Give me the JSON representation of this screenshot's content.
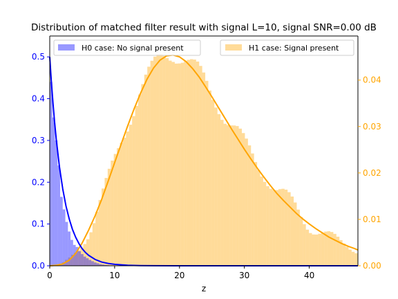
{
  "chart_data": {
    "type": "bar",
    "title": "Distribution of matched filter result with signal L=10, signal SNR=0.00 dB",
    "xlabel": "z",
    "ylabel_left": "",
    "ylabel_right": "",
    "xlim": [
      0,
      47.5
    ],
    "ylim_left": [
      0,
      0.55
    ],
    "ylim_right": [
      0,
      0.0495
    ],
    "x_ticks": [
      "0",
      "10",
      "20",
      "30",
      "40"
    ],
    "y_ticks_left": [
      "0.0",
      "0.1",
      "0.2",
      "0.3",
      "0.4",
      "0.5"
    ],
    "y_ticks_right": [
      "0.00",
      "0.01",
      "0.02",
      "0.03",
      "0.04"
    ],
    "grid": false,
    "series": [
      {
        "name": "H0 case: No signal present",
        "axis": "left",
        "color": "#0000ff",
        "hist_bin_width": 0.4,
        "hist_x": [
          0.2,
          0.6,
          1.0,
          1.4,
          1.8,
          2.2,
          2.6,
          3.0,
          3.4,
          3.8,
          4.2,
          4.6,
          5.0,
          5.4,
          5.8,
          6.2,
          6.6,
          7.0,
          7.4,
          7.8,
          8.2,
          8.6,
          9.0,
          9.4,
          9.8
        ],
        "hist_values": [
          0.44,
          0.355,
          0.3,
          0.24,
          0.165,
          0.135,
          0.105,
          0.082,
          0.062,
          0.05,
          0.045,
          0.035,
          0.028,
          0.022,
          0.018,
          0.014,
          0.011,
          0.008,
          0.006,
          0.004,
          0.003,
          0.002,
          0.0015,
          0.001,
          0.0008
        ],
        "curve_x": [
          0,
          0.25,
          0.5,
          0.75,
          1,
          1.5,
          2,
          2.5,
          3,
          3.5,
          4,
          4.5,
          5,
          5.5,
          6,
          7,
          8,
          9,
          10,
          12,
          14,
          16,
          20,
          30,
          40,
          47.5
        ],
        "curve_y": [
          0.5,
          0.441,
          0.389,
          0.344,
          0.303,
          0.236,
          0.184,
          0.143,
          0.112,
          0.087,
          0.068,
          0.053,
          0.041,
          0.032,
          0.025,
          0.015,
          0.009,
          0.0056,
          0.0034,
          0.0012,
          0.0005,
          0.0002,
          0.0,
          0.0,
          0.0,
          0.0
        ]
      },
      {
        "name": "H1 case: Signal present",
        "axis": "right",
        "color": "#ffa500",
        "hist_bin_width": 0.47,
        "hist_profile": [
          [
            0,
            0.0
          ],
          [
            1,
            0.0001
          ],
          [
            2,
            0.0005
          ],
          [
            3,
            0.0015
          ],
          [
            4,
            0.003
          ],
          [
            5,
            0.005
          ],
          [
            6,
            0.0075
          ],
          [
            7,
            0.0105
          ],
          [
            8,
            0.014
          ],
          [
            9,
            0.018
          ],
          [
            10,
            0.0225
          ],
          [
            11,
            0.027
          ],
          [
            12,
            0.031
          ],
          [
            13,
            0.0345
          ],
          [
            14,
            0.038
          ],
          [
            15,
            0.0405
          ],
          [
            16,
            0.0425
          ],
          [
            17,
            0.0445
          ],
          [
            18,
            0.0455
          ],
          [
            19,
            0.046
          ],
          [
            20,
            0.0455
          ],
          [
            21,
            0.0445
          ],
          [
            22,
            0.043
          ],
          [
            23,
            0.0415
          ],
          [
            24,
            0.0395
          ],
          [
            25,
            0.037
          ],
          [
            26,
            0.035
          ],
          [
            27,
            0.0325
          ],
          [
            28,
            0.0305
          ],
          [
            29,
            0.0285
          ],
          [
            30,
            0.026
          ],
          [
            31,
            0.024
          ],
          [
            32,
            0.022
          ],
          [
            33,
            0.0205
          ],
          [
            34,
            0.0185
          ],
          [
            35,
            0.0165
          ],
          [
            36,
            0.015
          ],
          [
            37,
            0.0135
          ],
          [
            38,
            0.012
          ],
          [
            39,
            0.0105
          ],
          [
            40,
            0.0092
          ],
          [
            41,
            0.0082
          ],
          [
            42,
            0.0072
          ],
          [
            43,
            0.0064
          ],
          [
            44,
            0.0056
          ],
          [
            45,
            0.0048
          ],
          [
            46,
            0.0042
          ],
          [
            47,
            0.0036
          ],
          [
            47.5,
            0.0033
          ]
        ],
        "curve_x": [
          0,
          1,
          2,
          3,
          4,
          5,
          6,
          7,
          8,
          9,
          10,
          11,
          12,
          13,
          14,
          15,
          16,
          17,
          18,
          19,
          20,
          21,
          22,
          23,
          24,
          25,
          26,
          27,
          28,
          29,
          30,
          31,
          32,
          33,
          34,
          35,
          36,
          37,
          38,
          39,
          40,
          41,
          42,
          43,
          44,
          45,
          46,
          47,
          47.5
        ],
        "curve_y": [
          0,
          0.0001,
          0.0004,
          0.0012,
          0.0027,
          0.0049,
          0.0077,
          0.0108,
          0.0143,
          0.0182,
          0.0222,
          0.0262,
          0.0301,
          0.0338,
          0.0372,
          0.0402,
          0.0426,
          0.0443,
          0.0452,
          0.0454,
          0.045,
          0.044,
          0.0425,
          0.0407,
          0.0386,
          0.0364,
          0.0341,
          0.0318,
          0.0295,
          0.0273,
          0.0251,
          0.023,
          0.021,
          0.0191,
          0.0173,
          0.0156,
          0.0141,
          0.0127,
          0.0113,
          0.0101,
          0.009,
          0.008,
          0.0071,
          0.0062,
          0.0055,
          0.0048,
          0.0042,
          0.0037,
          0.0034
        ]
      }
    ],
    "legend": [
      {
        "label": "H0 case: No signal present",
        "position": "upper-left",
        "color": "#0000ff"
      },
      {
        "label": "H1 case: Signal present",
        "position": "upper-right",
        "color": "#ffa500"
      }
    ]
  }
}
